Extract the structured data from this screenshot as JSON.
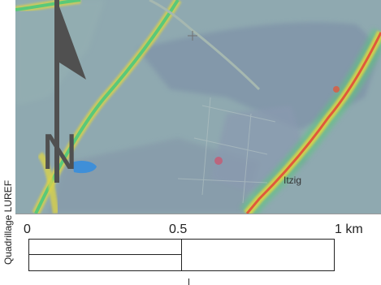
{
  "map": {
    "place_label": "Itzig",
    "north_label": "N"
  },
  "side_label": "Quadrillage LUREF",
  "scale_bar": {
    "labels": [
      "0",
      "0.5",
      "1 km"
    ],
    "unit": "km",
    "values": [
      0,
      0.5,
      1
    ]
  },
  "colors": {
    "land": "#8fa9b0",
    "fields_dark": "#7f93a8",
    "road_yellow": "#d9d24a",
    "road_green": "#59c97a",
    "road_red": "#e0593b",
    "arrow": "#505050",
    "water": "#3f8fd8"
  }
}
